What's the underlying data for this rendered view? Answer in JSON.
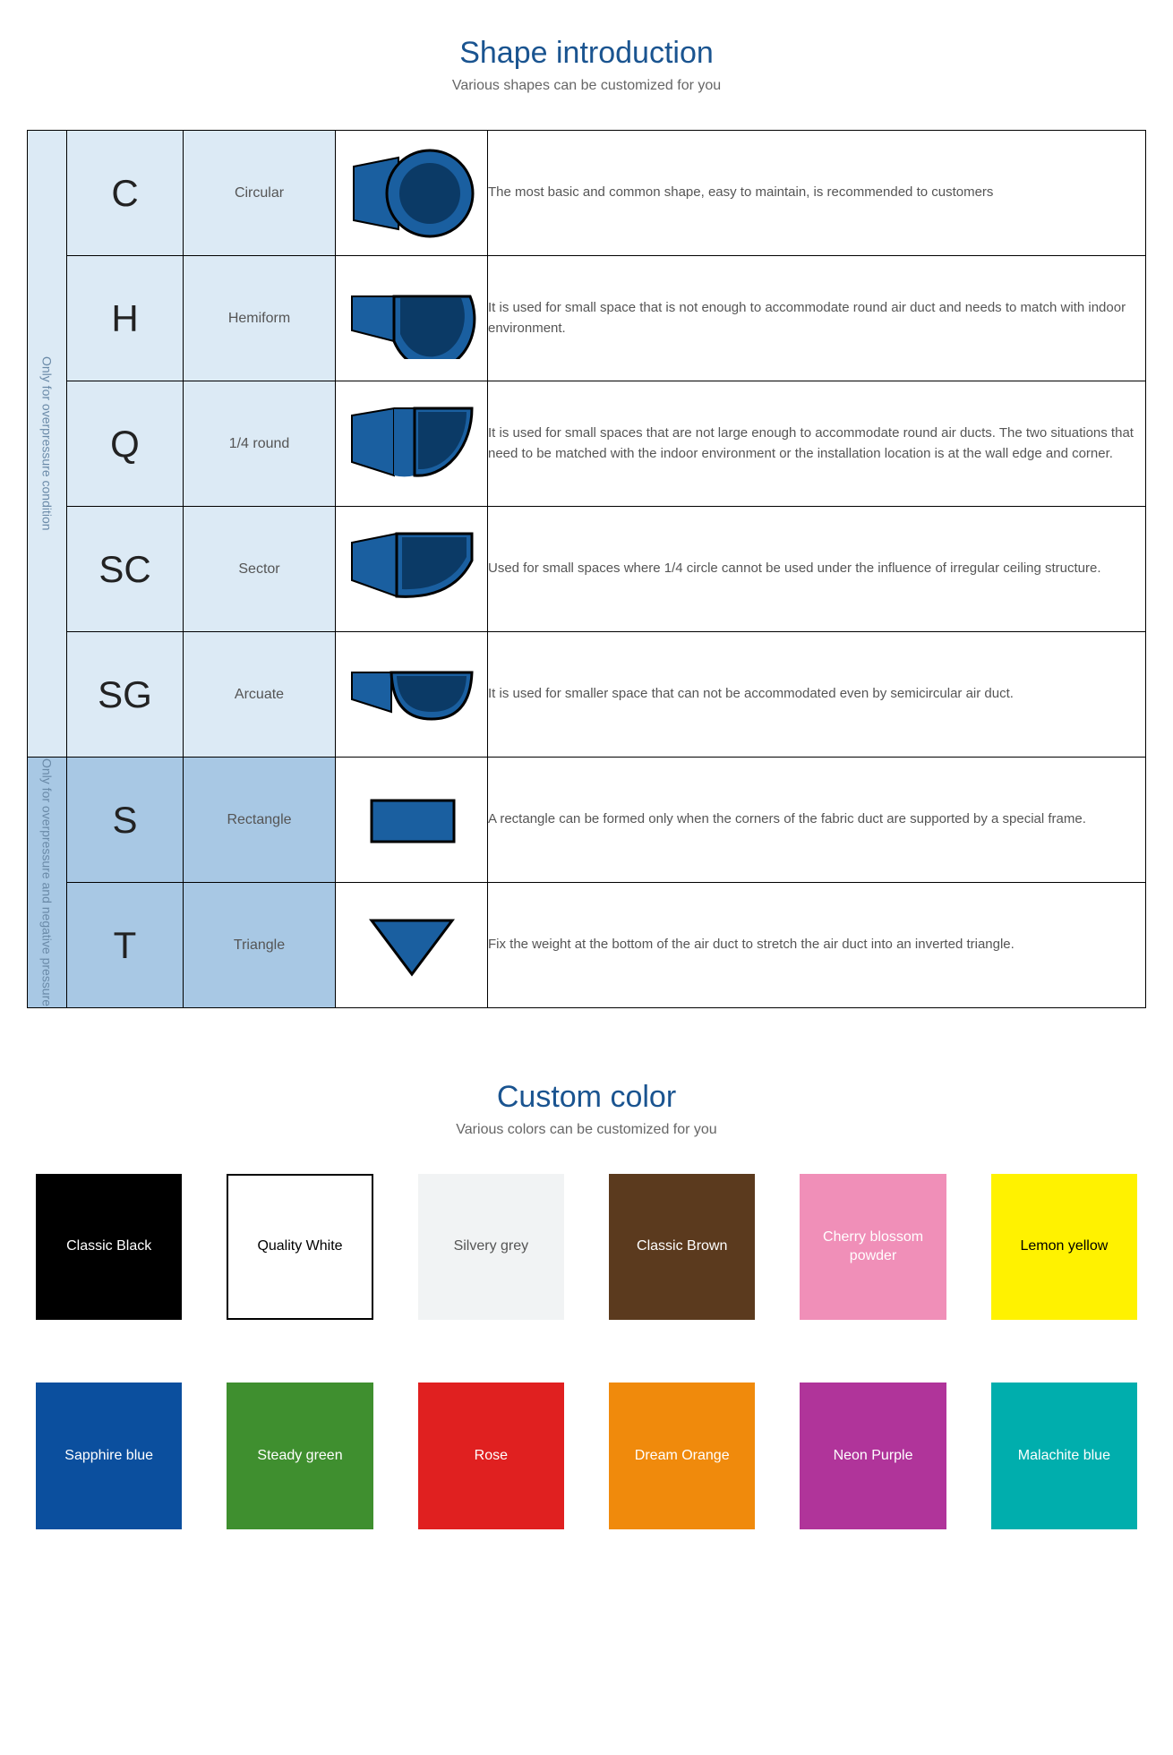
{
  "shapes": {
    "title": "Shape introduction",
    "subtitle": "Various shapes can be customized for you",
    "title_color": "#1a5490",
    "categories": [
      {
        "label": "Only for overpressure condition",
        "bg": "#dceaf5",
        "rows": 5
      },
      {
        "label": "Only for overpressure and negative pressure",
        "bg": "#a8c8e4",
        "rows": 2
      }
    ],
    "rows": [
      {
        "code": "C",
        "name": "Circular",
        "illus": "circular",
        "desc": "The most basic and common shape, easy to maintain, is recommended to customers"
      },
      {
        "code": "H",
        "name": "Hemiform",
        "illus": "hemiform",
        "desc": "It is used for small space that is not enough to accommodate round air duct and needs to match with indoor environment."
      },
      {
        "code": "Q",
        "name": "1/4 round",
        "illus": "quarter",
        "desc": "It is used for small spaces that are not large enough to accommodate round air ducts. The two situations that need to be matched with the indoor environment or the installation location is at the wall edge and corner."
      },
      {
        "code": "SC",
        "name": "Sector",
        "illus": "sector",
        "desc": "Used for small spaces where 1/4 circle cannot be used under the influence of irregular ceiling structure."
      },
      {
        "code": "SG",
        "name": "Arcuate",
        "illus": "arcuate",
        "desc": "It is used for smaller space that can not be accommodated even by semicircular air duct."
      },
      {
        "code": "S",
        "name": "Rectangle",
        "illus": "rectangle",
        "desc": "A rectangle can be formed only when the corners of the fabric duct are supported by a special frame."
      },
      {
        "code": "T",
        "name": "Triangle",
        "illus": "triangle",
        "desc": "Fix the weight at the bottom of the air duct to stretch the air duct into an inverted triangle."
      }
    ],
    "illus_fill_dark": "#0b3a66",
    "illus_fill": "#1a5fa0",
    "illus_stroke": "#000000"
  },
  "colors": {
    "title": "Custom color",
    "subtitle": "Various colors can be customized for you",
    "swatches": [
      {
        "label": "Classic Black",
        "bg": "#000000",
        "fg": "#ffffff",
        "border": false
      },
      {
        "label": "Quality White",
        "bg": "#ffffff",
        "fg": "#000000",
        "border": true
      },
      {
        "label": "Silvery grey",
        "bg": "#f1f3f4",
        "fg": "#555555",
        "border": false
      },
      {
        "label": "Classic Brown",
        "bg": "#5b3a1e",
        "fg": "#ffffff",
        "border": false
      },
      {
        "label": "Cherry blossom powder",
        "bg": "#f08fb8",
        "fg": "#ffffff",
        "border": false
      },
      {
        "label": "Lemon yellow",
        "bg": "#fff200",
        "fg": "#000000",
        "border": false
      },
      {
        "label": "Sapphire blue",
        "bg": "#0b4f9e",
        "fg": "#ffffff",
        "border": false
      },
      {
        "label": "Steady green",
        "bg": "#3f8f2f",
        "fg": "#ffffff",
        "border": false
      },
      {
        "label": "Rose",
        "bg": "#e02020",
        "fg": "#ffffff",
        "border": false
      },
      {
        "label": "Dream Orange",
        "bg": "#f08a0c",
        "fg": "#ffffff",
        "border": false
      },
      {
        "label": "Neon Purple",
        "bg": "#b0349a",
        "fg": "#ffffff",
        "border": false
      },
      {
        "label": "Malachite blue",
        "bg": "#00aead",
        "fg": "#ffffff",
        "border": false
      }
    ]
  }
}
